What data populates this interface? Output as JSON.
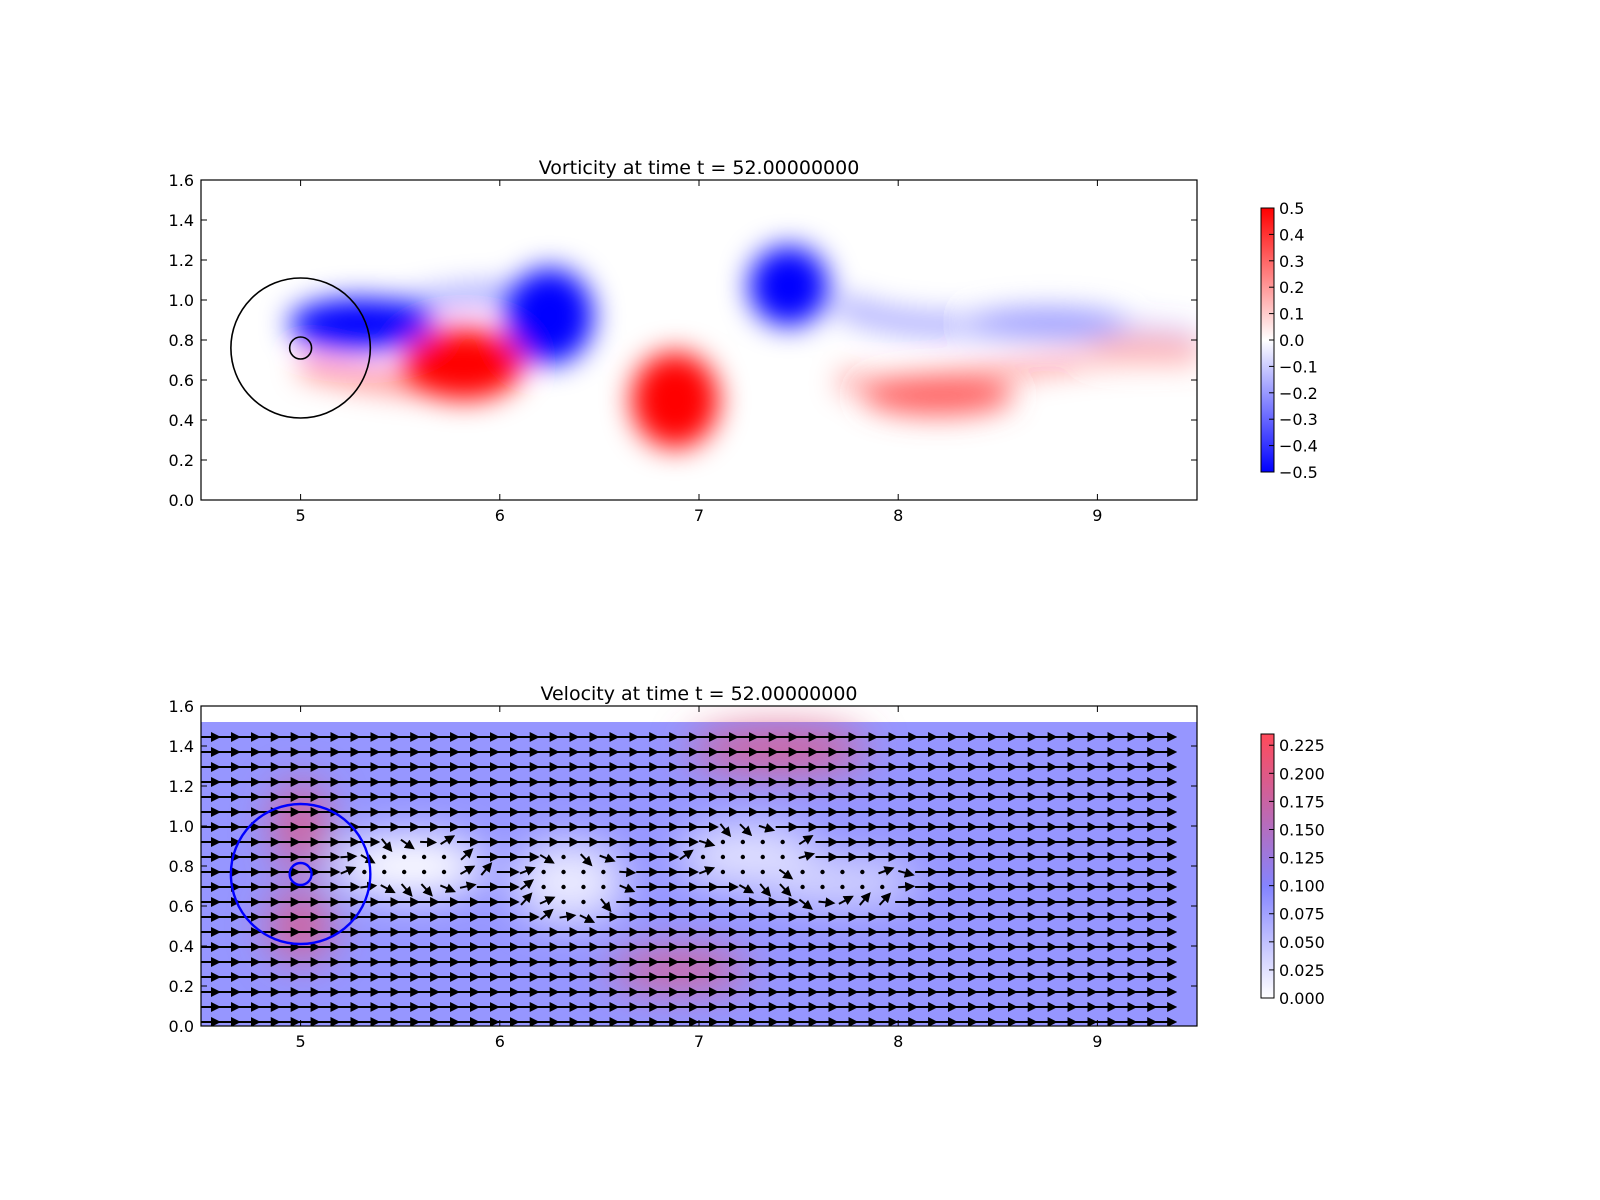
{
  "chart_data": [
    {
      "type": "heatmap",
      "title": "Vorticity at time t =    52.00000000",
      "xlabel": "",
      "ylabel": "",
      "xlim": [
        4.5,
        9.5
      ],
      "ylim": [
        0.0,
        1.6
      ],
      "x_ticks": [
        "5",
        "6",
        "7",
        "8",
        "9"
      ],
      "y_ticks": [
        "0.0",
        "0.2",
        "0.4",
        "0.6",
        "0.8",
        "1.0",
        "1.2",
        "1.4",
        "1.6"
      ],
      "colormap": [
        "#0000ff",
        "#ffffff",
        "#ff0000"
      ],
      "colorbar": {
        "range": [
          -0.5,
          0.5
        ],
        "ticks": [
          "−0.5",
          "−0.4",
          "−0.3",
          "−0.2",
          "−0.1",
          "0.0",
          "0.1",
          "0.2",
          "0.3",
          "0.4",
          "0.5"
        ]
      },
      "vortices": [
        {
          "x": 5.3,
          "y": 0.88,
          "value": -0.5
        },
        {
          "x": 5.82,
          "y": 0.68,
          "value": 0.5
        },
        {
          "x": 6.25,
          "y": 0.92,
          "value": -0.5
        },
        {
          "x": 6.88,
          "y": 0.5,
          "value": 0.5
        },
        {
          "x": 7.45,
          "y": 1.07,
          "value": -0.5
        },
        {
          "x": 8.2,
          "y": 0.52,
          "value": 0.3
        },
        {
          "x": 8.75,
          "y": 0.89,
          "value": -0.2
        },
        {
          "x": 9.25,
          "y": 0.76,
          "value": 0.15
        }
      ],
      "overlays": [
        {
          "shape": "circle",
          "center": [
            5.0,
            0.76
          ],
          "radius": 0.35,
          "color": "#000000"
        },
        {
          "shape": "circle",
          "center": [
            5.0,
            0.76
          ],
          "radius": 0.055,
          "color": "#000000"
        }
      ]
    },
    {
      "type": "heatmap",
      "title": "Velocity at time t =    52.00000000",
      "xlabel": "",
      "ylabel": "",
      "xlim": [
        4.5,
        9.5
      ],
      "ylim": [
        0.0,
        1.6
      ],
      "x_ticks": [
        "5",
        "6",
        "7",
        "8",
        "9"
      ],
      "y_ticks": [
        "0.0",
        "0.2",
        "0.4",
        "0.6",
        "0.8",
        "1.0",
        "1.2",
        "1.4",
        "1.6"
      ],
      "data_ylim": [
        0.0,
        1.52
      ],
      "colormap": [
        "#ffffff",
        "#8484ff",
        "#ff4a5a"
      ],
      "colorbar": {
        "range": [
          0.0,
          0.235
        ],
        "ticks": [
          "0.000",
          "0.025",
          "0.050",
          "0.075",
          "0.100",
          "0.125",
          "0.150",
          "0.175",
          "0.200",
          "0.225"
        ]
      },
      "background_speed": 0.1,
      "low_speed_wake": [
        {
          "x": 5.55,
          "y": 0.8,
          "value": 0.0
        },
        {
          "x": 6.35,
          "y": 0.72,
          "value": 0.02
        },
        {
          "x": 7.25,
          "y": 0.85,
          "value": 0.03
        },
        {
          "x": 7.7,
          "y": 0.72,
          "value": 0.04
        }
      ],
      "high_speed_regions": [
        {
          "x": 5.0,
          "y": 1.0,
          "value": 0.2
        },
        {
          "x": 5.0,
          "y": 0.5,
          "value": 0.2
        },
        {
          "x": 7.4,
          "y": 1.38,
          "value": 0.2
        },
        {
          "x": 6.9,
          "y": 0.28,
          "value": 0.2
        }
      ],
      "quiver": {
        "nx": 49,
        "ny": 20,
        "dx": 0.1,
        "dy": 0.075
      },
      "overlays": [
        {
          "shape": "circle",
          "center": [
            5.0,
            0.76
          ],
          "radius": 0.35,
          "color": "#0000ff"
        },
        {
          "shape": "circle",
          "center": [
            5.0,
            0.76
          ],
          "radius": 0.055,
          "color": "#0000ff"
        }
      ]
    }
  ]
}
